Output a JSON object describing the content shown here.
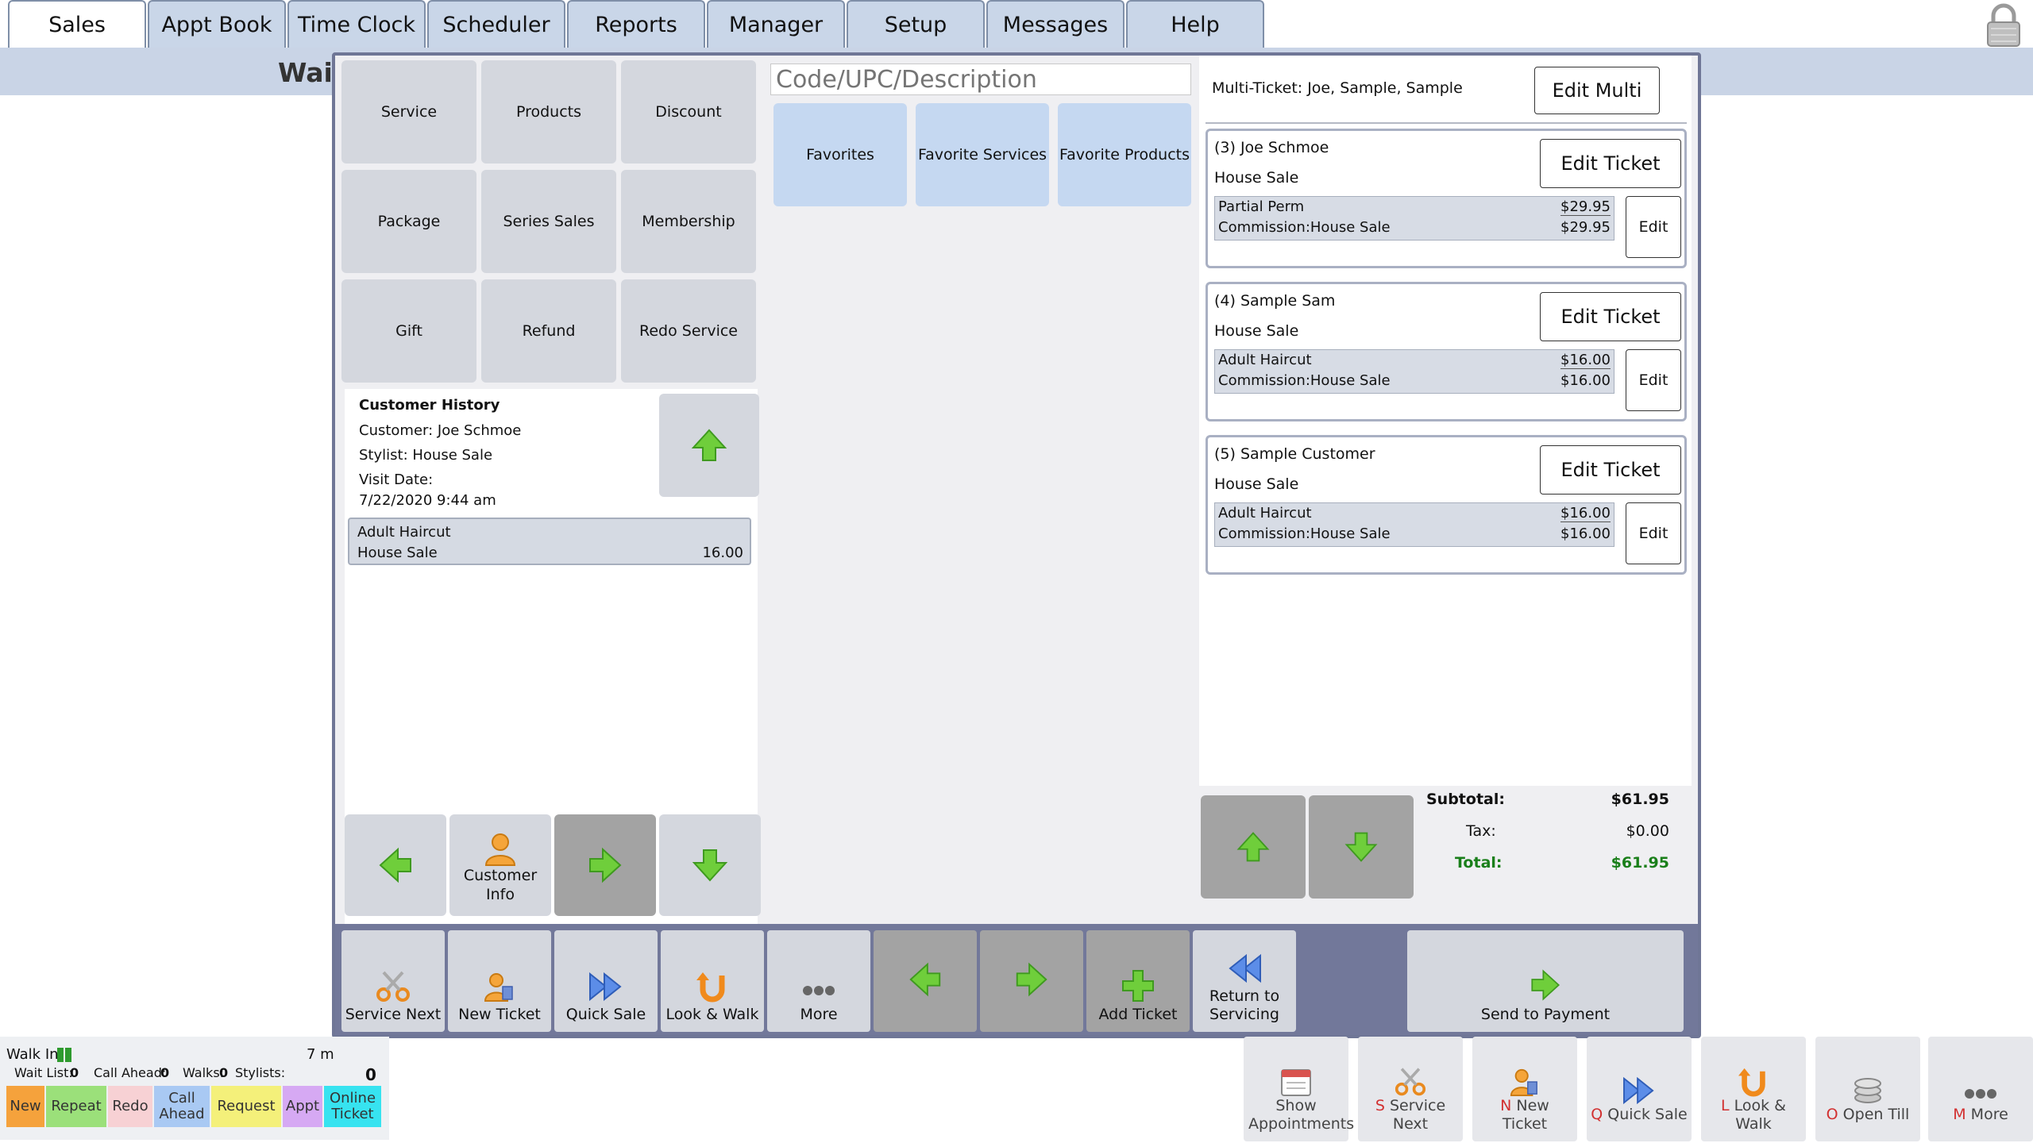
{
  "nav": {
    "tabs": [
      "Sales",
      "Appt Book",
      "Time Clock",
      "Scheduler",
      "Reports",
      "Manager",
      "Setup",
      "Messages",
      "Help"
    ],
    "active_tab": "Sales"
  },
  "page": {
    "wait_label": "Wait"
  },
  "dialog": {
    "item_buttons": [
      "Service",
      "Products",
      "Discount",
      "Package",
      "Series Sales",
      "Membership",
      "Gift",
      "Refund",
      "Redo Service"
    ],
    "search": {
      "placeholder": "Code/UPC/Description"
    },
    "favorites": [
      "Favorites",
      "Favorite Services",
      "Favorite Products"
    ],
    "history": {
      "title": "Customer History",
      "customer": "Customer: Joe Schmoe",
      "stylist": "Stylist: House Sale",
      "visit_label": "Visit Date:",
      "visit_date": "7/22/2020 9:44 am",
      "item": {
        "name": "Adult Haircut",
        "seller": "House Sale",
        "amount": "16.00"
      }
    },
    "customer_info_label": "Customer Info",
    "multi_ticket": "Multi-Ticket: Joe, Sample, Sample",
    "edit_multi": "Edit Multi",
    "tickets": [
      {
        "name": "(3) Joe Schmoe",
        "sale": "House Sale",
        "edit_ticket": "Edit Ticket",
        "edit": "Edit",
        "item": "Partial Perm",
        "commission": "Commission:House Sale",
        "price": "$29.95",
        "commission_price": "$29.95"
      },
      {
        "name": "(4) Sample Sam",
        "sale": "House Sale",
        "edit_ticket": "Edit Ticket",
        "edit": "Edit",
        "item": "Adult Haircut",
        "commission": "Commission:House Sale",
        "price": "$16.00",
        "commission_price": "$16.00"
      },
      {
        "name": "(5) Sample Customer",
        "sale": "House Sale",
        "edit_ticket": "Edit Ticket",
        "edit": "Edit",
        "item": "Adult Haircut",
        "commission": "Commission:House Sale",
        "price": "$16.00",
        "commission_price": "$16.00"
      }
    ],
    "totals": {
      "subtotal_label": "Subtotal:",
      "subtotal": "$61.95",
      "tax_label": "Tax:",
      "tax": "$0.00",
      "total_label": "Total:",
      "total": "$61.95",
      "total_color": "#1a7f1a"
    },
    "actions": {
      "service_next": "Service Next",
      "new_ticket": "New Ticket",
      "quick_sale": "Quick Sale",
      "look_walk": "Look & Walk",
      "more": "More",
      "add_ticket": "Add Ticket",
      "return_servicing": "Return to Servicing",
      "send_payment": "Send to Payment"
    }
  },
  "status": {
    "walk_in": "Walk In",
    "time": "7 m",
    "wait_list_label": "Wait List:",
    "wait_list": "0",
    "call_ahead_label": "Call Ahead:",
    "call_ahead": "0",
    "walks_label": "Walks:",
    "walks": "0",
    "stylists_label": "Stylists:",
    "count": "0",
    "chips": [
      {
        "label": "New",
        "color": "#f5a23c"
      },
      {
        "label": "Repeat",
        "color": "#9be07a"
      },
      {
        "label": "Redo",
        "color": "#f7d1d4"
      },
      {
        "label": "Call Ahead",
        "color": "#a9c9f3"
      },
      {
        "label": "Request",
        "color": "#f4f07a"
      },
      {
        "label": "Appt",
        "color": "#d6a9f3"
      },
      {
        "label": "Online Ticket",
        "color": "#37e3f0"
      }
    ]
  },
  "bottom_bar": {
    "show_appointments": "Show Appointments",
    "service_next_key": "S",
    "service_next": "Service Next",
    "new_ticket_key": "N",
    "new_ticket": "New Ticket",
    "quick_sale_key": "Q",
    "quick_sale": "Quick Sale",
    "look_walk_key": "L",
    "look_walk": "Look & Walk",
    "open_till_key": "O",
    "open_till": "Open Till",
    "more_key": "M",
    "more": "More"
  }
}
